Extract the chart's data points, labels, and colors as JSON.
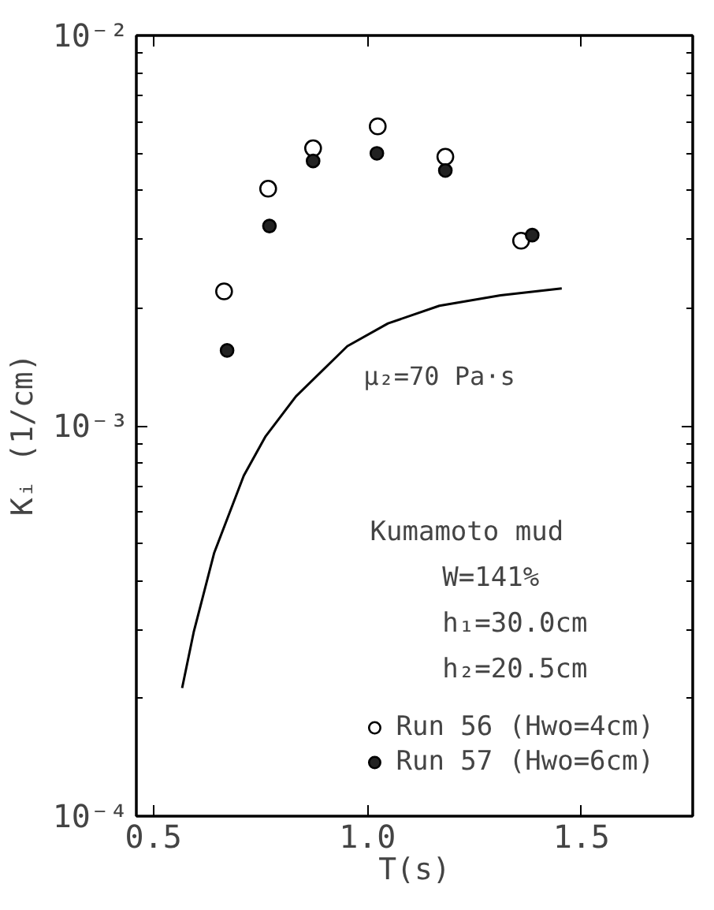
{
  "chart_data": {
    "type": "scatter",
    "xlabel": "T(s)",
    "ylabel": "Kᵢ  (1/cm)",
    "log": "y",
    "grid": false,
    "legend": "bottom right",
    "xlim": [
      0.46,
      1.76
    ],
    "ylim": [
      0.0001,
      0.01
    ],
    "xticks": [
      {
        "value": 0.5,
        "label": "0.5"
      },
      {
        "value": 1.0,
        "label": "1.0"
      },
      {
        "value": 1.5,
        "label": "1.5"
      }
    ],
    "yticks": [
      {
        "value": 0.0001,
        "label": "10⁻⁴"
      },
      {
        "value": 0.001,
        "label": "10⁻³"
      },
      {
        "value": 0.01,
        "label": "10⁻²"
      }
    ],
    "series": [
      {
        "name": "Run 56 (Hwo=4cm)",
        "marker": "circle",
        "color": "#ffffff",
        "x": [
          0.665,
          0.768,
          0.873,
          1.024,
          1.182,
          1.359
        ],
        "values": [
          0.00221,
          0.00405,
          0.00514,
          0.00585,
          0.00489,
          0.00298
        ]
      },
      {
        "name": "Run 57 (Hwo=6cm)",
        "marker": "circle",
        "color": "#222222",
        "x": [
          0.672,
          0.771,
          0.873,
          1.022,
          1.182,
          1.385
        ],
        "values": [
          0.00156,
          0.00325,
          0.00477,
          0.00499,
          0.00451,
          0.00308
        ]
      },
      {
        "name": "μ₂=70 Pa·s",
        "type": "line",
        "marker": "none",
        "color": "#000000",
        "x": [
          0.567,
          0.594,
          0.642,
          0.711,
          0.762,
          0.833,
          0.953,
          1.048,
          1.168,
          1.311,
          1.454
        ],
        "values": [
          0.000213,
          0.000296,
          0.000473,
          0.000745,
          0.00094,
          0.00119,
          0.0016,
          0.00183,
          0.00203,
          0.00216,
          0.00225
        ]
      }
    ],
    "annotations": [
      "Kumamoto mud",
      "W=141%",
      "h₁=30.0cm",
      "h₂=20.5cm"
    ]
  }
}
